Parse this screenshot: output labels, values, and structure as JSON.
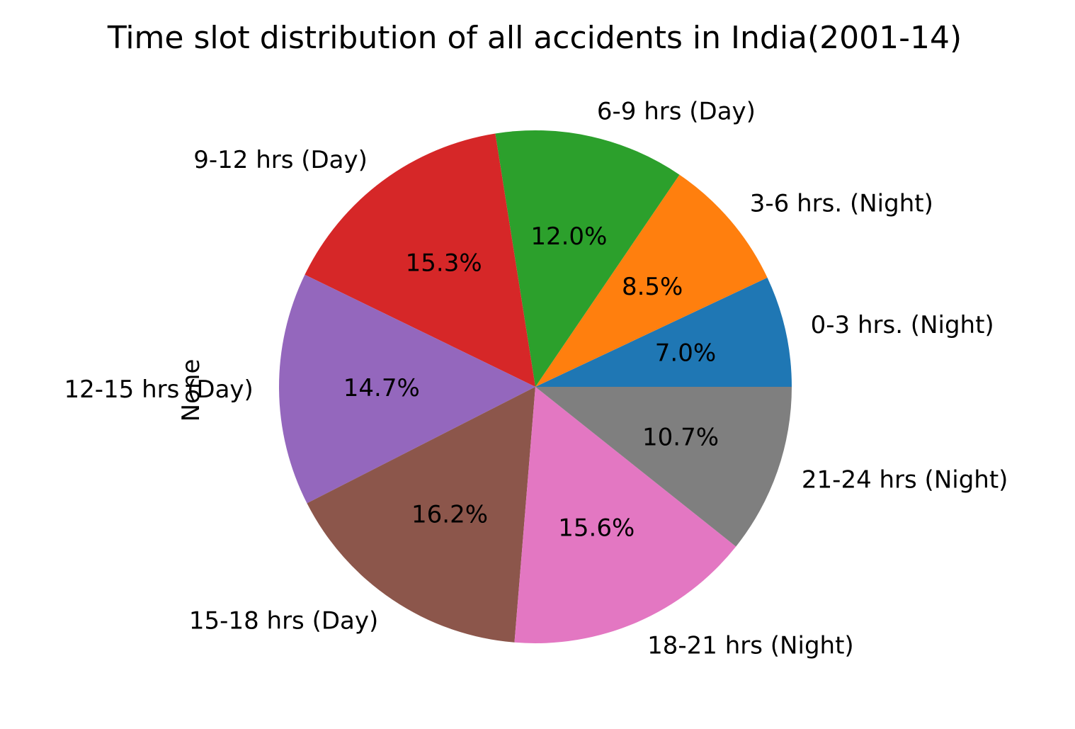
{
  "chart_data": {
    "type": "pie",
    "title": "Time slot distribution of all accidents in India(2001-14)",
    "ylabel": "None",
    "slices": [
      {
        "label": "0-3 hrs. (Night)",
        "value": 7.0,
        "pct_label": "7.0%",
        "color": "#1f77b4"
      },
      {
        "label": "3-6 hrs. (Night)",
        "value": 8.5,
        "pct_label": "8.5%",
        "color": "#ff7f0e"
      },
      {
        "label": "6-9 hrs (Day)",
        "value": 12.0,
        "pct_label": "12.0%",
        "color": "#2ca02c"
      },
      {
        "label": "9-12 hrs (Day)",
        "value": 15.3,
        "pct_label": "15.3%",
        "color": "#d62728"
      },
      {
        "label": "12-15 hrs (Day)",
        "value": 14.7,
        "pct_label": "14.7%",
        "color": "#9467bd"
      },
      {
        "label": "15-18 hrs (Day)",
        "value": 16.2,
        "pct_label": "16.2%",
        "color": "#8c564b"
      },
      {
        "label": "18-21 hrs (Night)",
        "value": 15.6,
        "pct_label": "15.6%",
        "color": "#e377c2"
      },
      {
        "label": "21-24 hrs (Night)",
        "value": 10.7,
        "pct_label": "10.7%",
        "color": "#7f7f7f"
      }
    ],
    "start_angle_deg": 0,
    "direction": "counterclockwise"
  }
}
